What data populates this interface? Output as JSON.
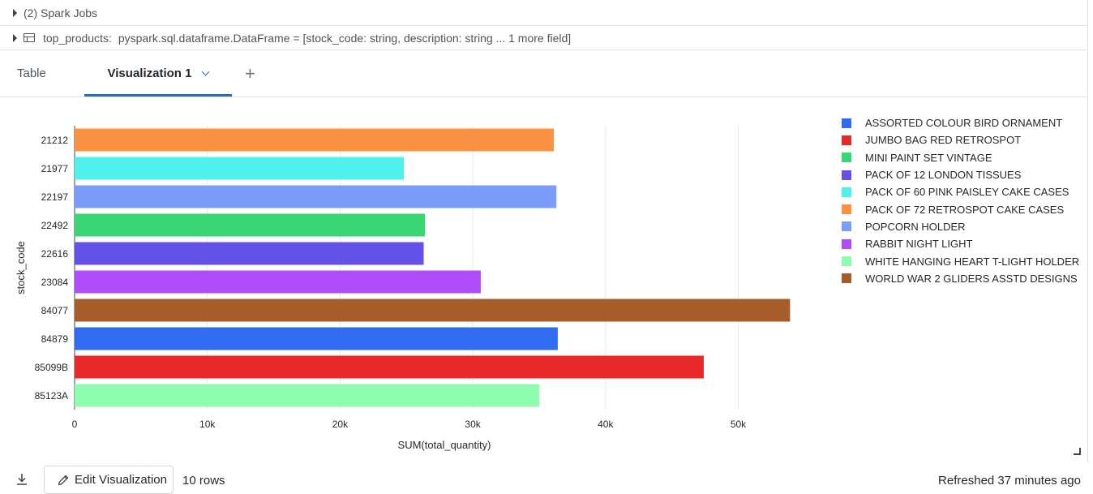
{
  "header": {
    "spark_jobs": "(2) Spark Jobs",
    "df_name": "top_products:",
    "df_type": "pyspark.sql.dataframe.DataFrame = [stock_code: string, description: string ... 1 more field]"
  },
  "tabs": {
    "table": "Table",
    "visualization": "Visualization 1",
    "add": "+"
  },
  "legend": [
    {
      "label": "ASSORTED COLOUR BIRD ORNAMENT",
      "color": "#2f6cf2"
    },
    {
      "label": "JUMBO BAG RED RETROSPOT",
      "color": "#e8292b"
    },
    {
      "label": "MINI PAINT SET VINTAGE",
      "color": "#3ad575"
    },
    {
      "label": "PACK OF 12 LONDON TISSUES",
      "color": "#6451e8"
    },
    {
      "label": "PACK OF 60 PINK PAISLEY CAKE CASES",
      "color": "#50f0ec"
    },
    {
      "label": "PACK OF 72 RETROSPOT CAKE CASES",
      "color": "#fb9243"
    },
    {
      "label": "POPCORN HOLDER",
      "color": "#7b9df9"
    },
    {
      "label": "RABBIT NIGHT LIGHT",
      "color": "#b04dfa"
    },
    {
      "label": "WHITE HANGING HEART T-LIGHT HOLDER",
      "color": "#8ffdaf"
    },
    {
      "label": "WORLD WAR 2 GLIDERS ASSTD DESIGNS",
      "color": "#a65d29"
    }
  ],
  "chart_data": {
    "type": "bar",
    "orientation": "horizontal",
    "xlabel": "SUM(total_quantity)",
    "ylabel": "stock_code",
    "xlim": [
      0,
      54000
    ],
    "x_ticks": [
      0,
      10000,
      20000,
      30000,
      40000,
      50000
    ],
    "x_tick_labels": [
      "0",
      "10k",
      "20k",
      "30k",
      "40k",
      "50k"
    ],
    "grid": true,
    "legend_position": "right",
    "categories": [
      "21212",
      "21977",
      "22197",
      "22492",
      "22616",
      "23084",
      "84077",
      "84879",
      "85099B",
      "85123A"
    ],
    "values": [
      36100,
      24800,
      36300,
      26400,
      26300,
      30600,
      53900,
      36400,
      47400,
      35000
    ],
    "bar_colors": [
      "#fb9243",
      "#50f0ec",
      "#7b9df9",
      "#3ad575",
      "#6451e8",
      "#b04dfa",
      "#a65d29",
      "#2f6cf2",
      "#e8292b",
      "#8ffdaf"
    ]
  },
  "footer": {
    "edit_button": "Edit Visualization",
    "rows": "10 rows",
    "refreshed": "Refreshed 37 minutes ago"
  }
}
